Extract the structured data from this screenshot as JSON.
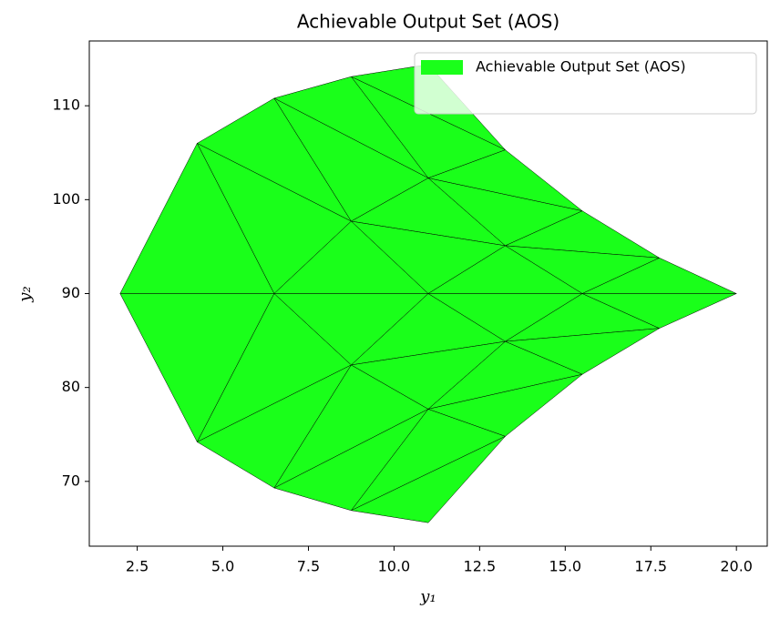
{
  "chart_data": {
    "type": "triangulated_patch",
    "title": "Achievable Output Set (AOS)",
    "x_label": "y₁",
    "y_label": "y₂",
    "legend": {
      "label": "Achievable Output Set (AOS)",
      "corner": "upper right"
    },
    "color": "#1aff1a",
    "edge_color": "#000000",
    "points": {
      "x": [
        [
          2,
          4.25,
          6.5,
          8.75,
          11
        ],
        [
          4.25,
          6.5,
          8.75,
          11,
          13.25
        ],
        [
          6.5,
          8.75,
          11,
          13.25,
          15.5
        ],
        [
          8.75,
          11,
          13.25,
          15.5,
          17.75
        ],
        [
          11,
          13.25,
          15.5,
          17.75,
          20
        ]
      ],
      "y": [
        [
          90,
          106.0,
          110.8,
          113.1,
          114.4
        ],
        [
          74.2,
          90,
          97.7,
          102.3,
          105.3
        ],
        [
          69.3,
          82.4,
          90,
          95.1,
          98.8
        ],
        [
          66.9,
          77.7,
          84.9,
          90,
          93.8
        ],
        [
          65.6,
          74.8,
          81.4,
          86.3,
          90
        ]
      ]
    },
    "xlim": [
      1.1,
      20.9
    ],
    "ylim": [
      63.1,
      116.9
    ],
    "xticks": [
      2.5,
      {
        "value": 5,
        "label": "5.0"
      },
      7.5,
      {
        "value": 10,
        "label": "10.0"
      },
      12.5,
      {
        "value": 15,
        "label": "15.0"
      },
      17.5,
      {
        "value": 20,
        "label": "20.0"
      }
    ],
    "yticks": [
      70,
      80,
      90,
      100,
      110
    ]
  }
}
